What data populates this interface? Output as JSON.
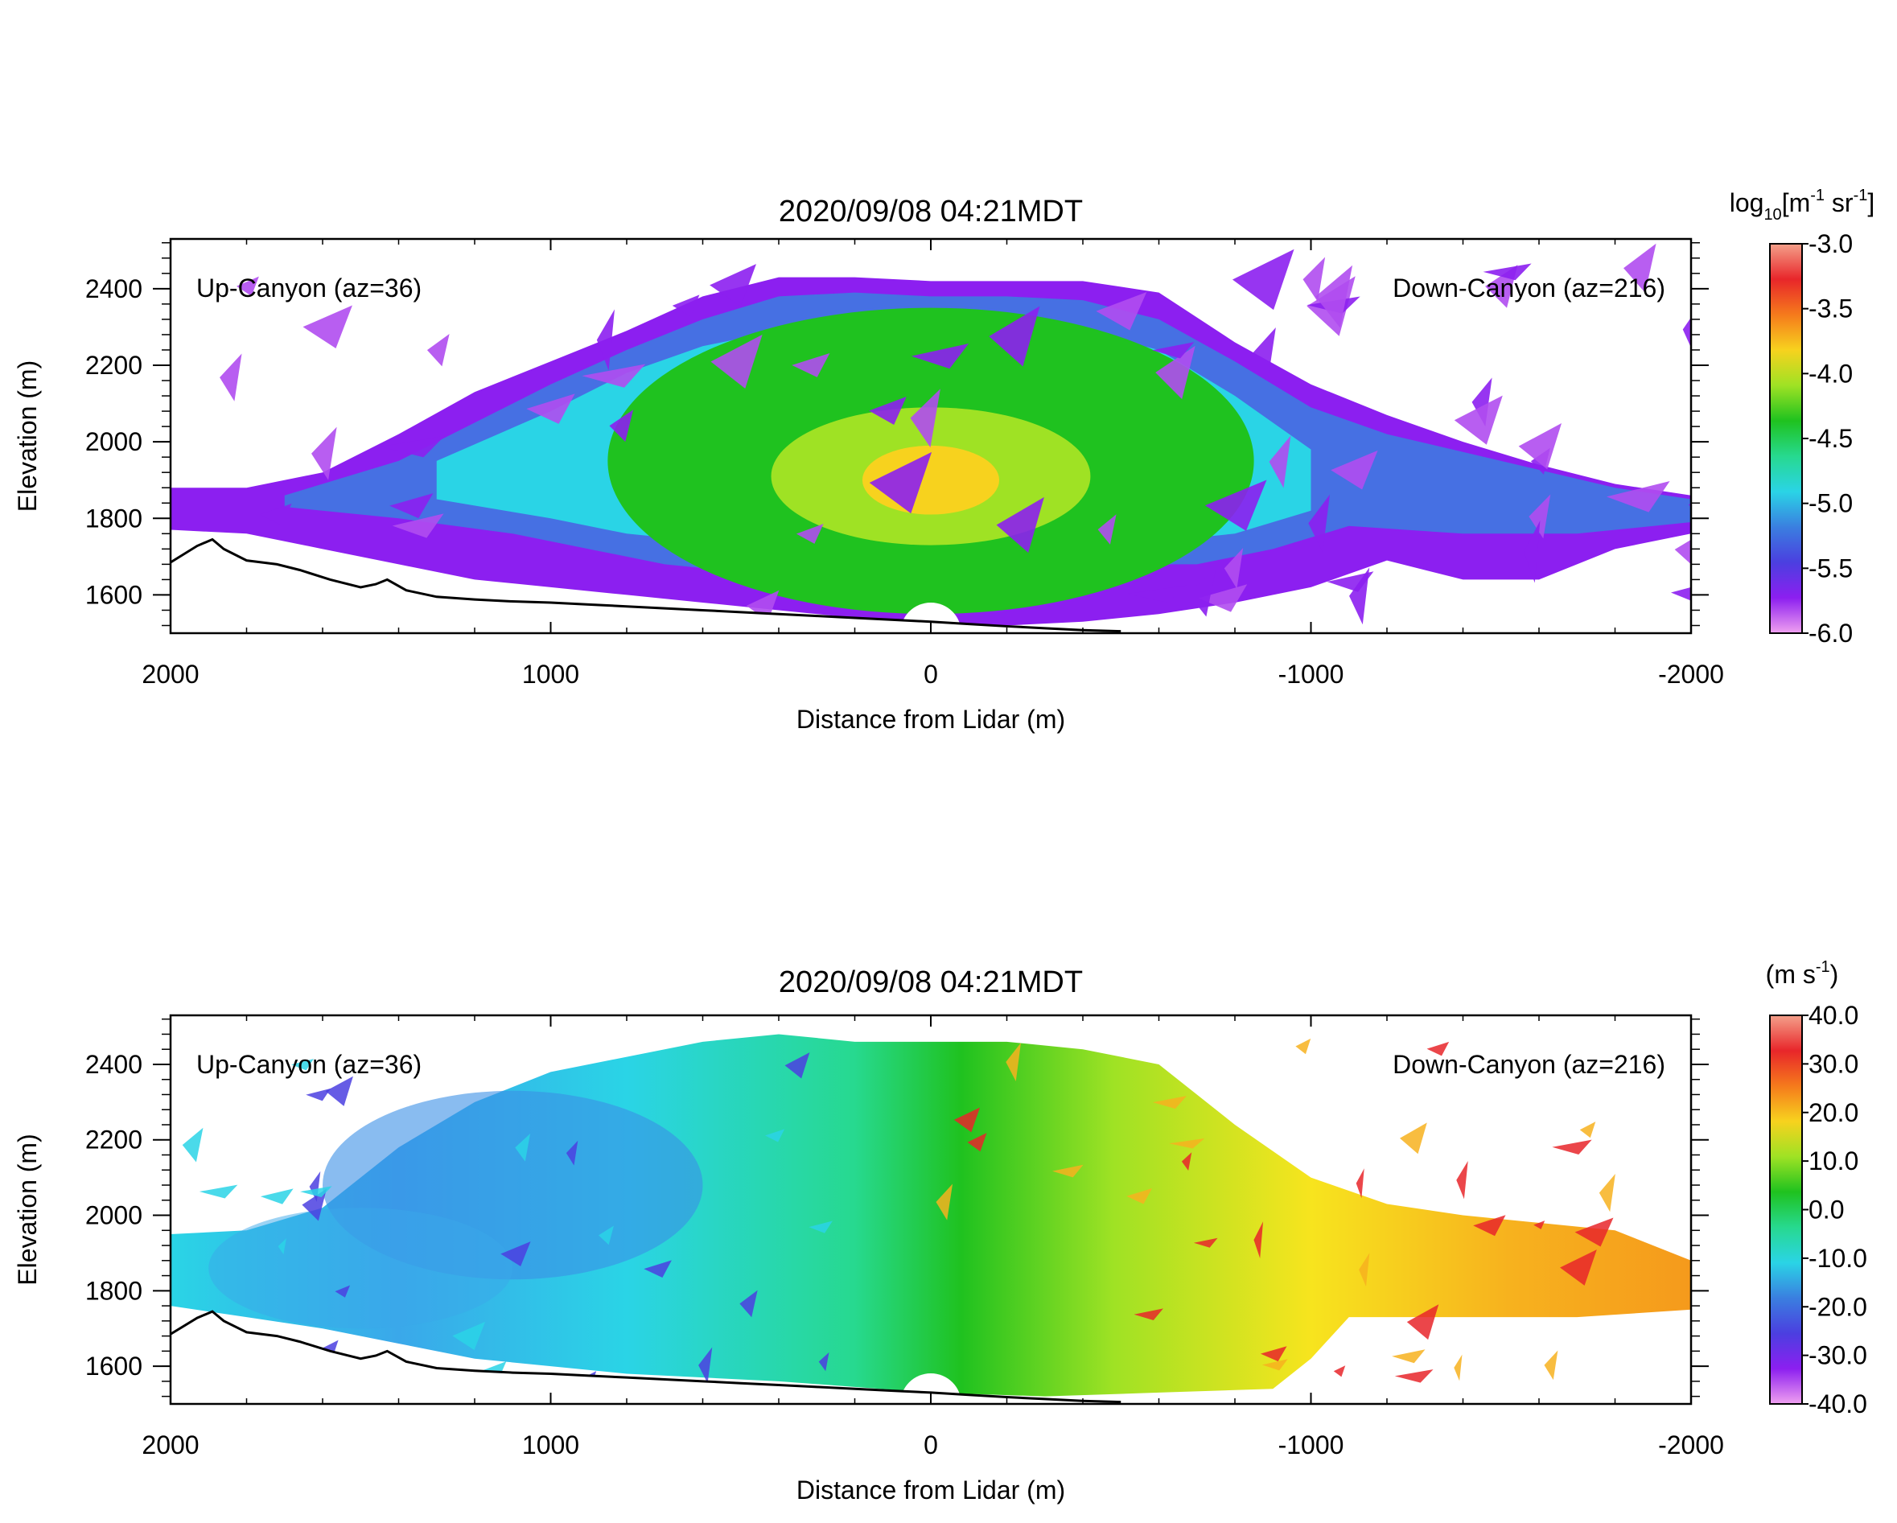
{
  "chart_data": [
    {
      "type": "heatmap",
      "title": "2020/09/08 04:21MDT",
      "xlabel": "Distance from Lidar (m)",
      "ylabel": "Elevation (m)",
      "x_ticks": [
        2000,
        1000,
        0,
        -1000,
        -2000
      ],
      "x_tick_labels": [
        "2000",
        "1000",
        "0",
        "-1000",
        "-2000"
      ],
      "xlim": [
        2000,
        -2000
      ],
      "y_ticks": [
        1600,
        1800,
        2000,
        2200,
        2400
      ],
      "y_tick_labels": [
        "1600",
        "1800",
        "2000",
        "2200",
        "2400"
      ],
      "ylim": [
        1500,
        2530
      ],
      "left_annotation": "Up-Canyon (az=36)",
      "right_annotation": "Down-Canyon (az=216)",
      "colorbar": {
        "unit_base": "log",
        "unit_sub": "10",
        "unit_rest": "[m",
        "unit_sup1": "-1",
        "unit_mid": " sr",
        "unit_sup2": "-1",
        "unit_end": "]",
        "range": [
          -6.0,
          -3.0
        ],
        "tick_values": [
          -3.0,
          -3.5,
          -4.0,
          -4.5,
          -5.0,
          -5.5,
          -6.0
        ],
        "tick_labels": [
          "-3.0",
          "-3.5",
          "-4.0",
          "-4.5",
          "-5.0",
          "-5.5",
          "-6.0"
        ],
        "colors_top_to_bottom": [
          "#f4a08a",
          "#e8262a",
          "#f57a1c",
          "#f7d21e",
          "#9fe224",
          "#1fc21f",
          "#27d98f",
          "#2ad4e6",
          "#3a7fe0",
          "#4b3fe0",
          "#8c1ff0",
          "#f0a0f0"
        ]
      },
      "terrain": [
        [
          2000,
          1685
        ],
        [
          1930,
          1728
        ],
        [
          1890,
          1745
        ],
        [
          1860,
          1720
        ],
        [
          1800,
          1690
        ],
        [
          1720,
          1680
        ],
        [
          1660,
          1665
        ],
        [
          1580,
          1640
        ],
        [
          1500,
          1620
        ],
        [
          1460,
          1628
        ],
        [
          1430,
          1640
        ],
        [
          1380,
          1612
        ],
        [
          1300,
          1595
        ],
        [
          1200,
          1588
        ],
        [
          1100,
          1583
        ],
        [
          1000,
          1580
        ],
        [
          900,
          1575
        ],
        [
          800,
          1570
        ],
        [
          700,
          1565
        ],
        [
          600,
          1560
        ],
        [
          500,
          1555
        ],
        [
          400,
          1550
        ],
        [
          300,
          1545
        ],
        [
          200,
          1540
        ],
        [
          100,
          1535
        ],
        [
          0,
          1530
        ],
        [
          -100,
          1524
        ],
        [
          -200,
          1518
        ],
        [
          -300,
          1513
        ],
        [
          -400,
          1508
        ],
        [
          -500,
          1505
        ]
      ]
    },
    {
      "type": "heatmap",
      "title": "2020/09/08 04:21MDT",
      "xlabel": "Distance from Lidar (m)",
      "ylabel": "Elevation (m)",
      "x_ticks": [
        2000,
        1000,
        0,
        -1000,
        -2000
      ],
      "x_tick_labels": [
        "2000",
        "1000",
        "0",
        "-1000",
        "-2000"
      ],
      "xlim": [
        2000,
        -2000
      ],
      "y_ticks": [
        1600,
        1800,
        2000,
        2200,
        2400
      ],
      "y_tick_labels": [
        "1600",
        "1800",
        "2000",
        "2200",
        "2400"
      ],
      "ylim": [
        1500,
        2530
      ],
      "left_annotation": "Up-Canyon (az=36)",
      "right_annotation": "Down-Canyon (az=216)",
      "colorbar": {
        "unit_base": "(m s",
        "unit_sup1": "-1",
        "unit_end": ")",
        "range": [
          -40.0,
          40.0
        ],
        "tick_values": [
          40.0,
          30.0,
          20.0,
          10.0,
          0.0,
          -10.0,
          -20.0,
          -30.0,
          -40.0
        ],
        "tick_labels": [
          "40.0",
          "30.0",
          "20.0",
          "10.0",
          "0.0",
          "-10.0",
          "-20.0",
          "-30.0",
          "-40.0"
        ],
        "colors_top_to_bottom": [
          "#f4a08a",
          "#e8262a",
          "#f57a1c",
          "#f7d21e",
          "#9fe224",
          "#1fc21f",
          "#27d98f",
          "#2ad4e6",
          "#3a7fe0",
          "#4b3fe0",
          "#8c1ff0",
          "#f0a0f0"
        ]
      },
      "terrain": [
        [
          2000,
          1685
        ],
        [
          1930,
          1728
        ],
        [
          1890,
          1745
        ],
        [
          1860,
          1720
        ],
        [
          1800,
          1690
        ],
        [
          1720,
          1680
        ],
        [
          1660,
          1665
        ],
        [
          1580,
          1640
        ],
        [
          1500,
          1620
        ],
        [
          1460,
          1628
        ],
        [
          1430,
          1640
        ],
        [
          1380,
          1612
        ],
        [
          1300,
          1595
        ],
        [
          1200,
          1588
        ],
        [
          1100,
          1583
        ],
        [
          1000,
          1580
        ],
        [
          900,
          1575
        ],
        [
          800,
          1570
        ],
        [
          700,
          1565
        ],
        [
          600,
          1560
        ],
        [
          500,
          1555
        ],
        [
          400,
          1550
        ],
        [
          300,
          1545
        ],
        [
          200,
          1540
        ],
        [
          100,
          1535
        ],
        [
          0,
          1530
        ],
        [
          -100,
          1524
        ],
        [
          -200,
          1518
        ],
        [
          -300,
          1513
        ],
        [
          -400,
          1508
        ],
        [
          -500,
          1505
        ]
      ]
    }
  ]
}
